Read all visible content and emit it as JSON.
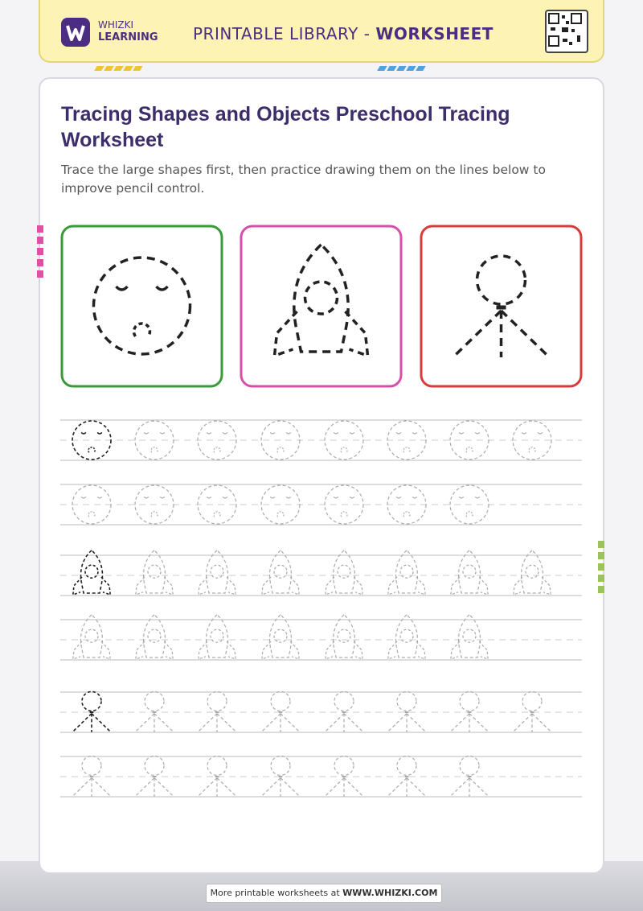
{
  "header": {
    "brand_top": "WHIZKI",
    "brand_bottom": "LEARNING",
    "library": "PRINTABLE LIBRARY - ",
    "library_emphasis": "WORKSHEET"
  },
  "title": "Tracing Shapes and Objects Preschool Tracing Worksheet",
  "instructions": "Trace the large shapes first, then practice drawing them on the lines below to improve pencil control.",
  "footer": {
    "text": "More printable worksheets at ",
    "link": "WWW.WHIZKI.COM"
  }
}
